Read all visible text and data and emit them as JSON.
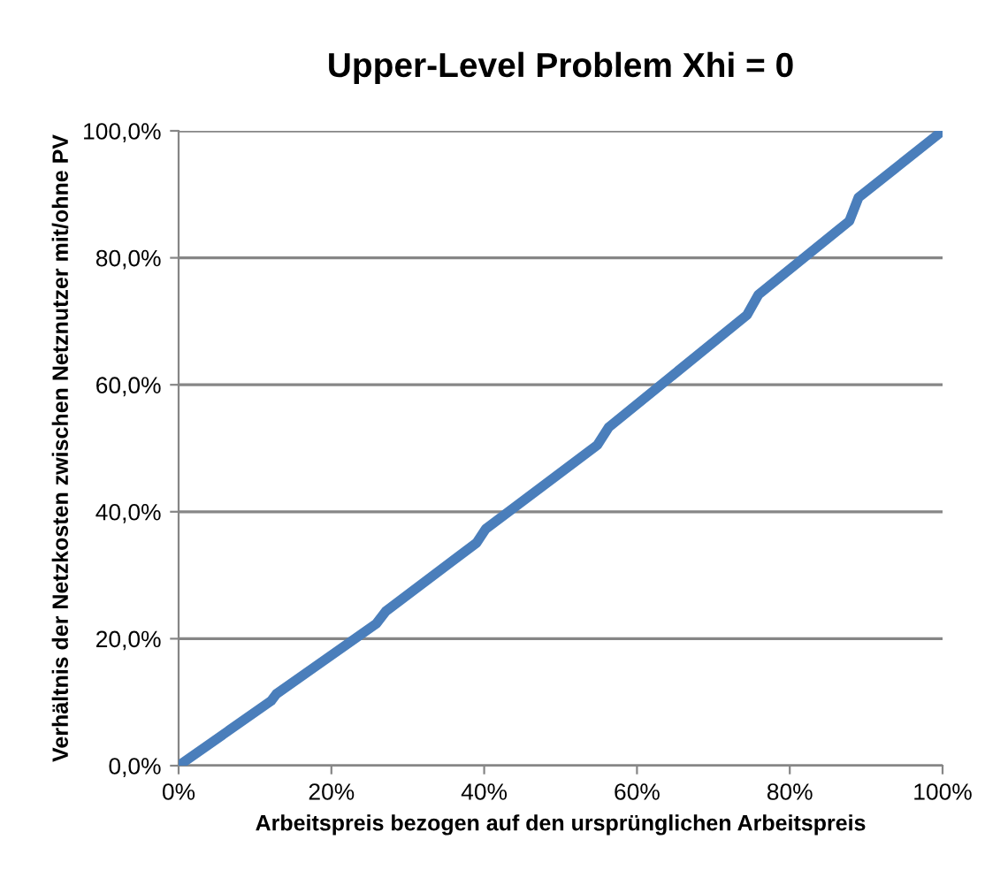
{
  "chart_data": {
    "type": "line",
    "title": "Upper-Level Problem Xhi = 0",
    "xlabel": "Arbeitspreis bezogen auf den ursprünglichen Arbeitspreis",
    "ylabel": "Verhältnis der Netzkosten zwischen Netznutzer mit/ohne PV",
    "series": [
      {
        "color": "#4a7ebb",
        "x": [
          0,
          12.1,
          12.8,
          25.9,
          27.1,
          39.0,
          40.2,
          54.8,
          56.3,
          74.4,
          75.9,
          87.8,
          89.0,
          100
        ],
        "values": [
          0,
          10.2,
          11.3,
          22.4,
          24.3,
          35.1,
          37.3,
          50.5,
          53.3,
          71.0,
          74.2,
          85.8,
          89.5,
          100
        ]
      }
    ],
    "xlim": [
      0,
      100
    ],
    "ylim": [
      0,
      100
    ],
    "xticks": [
      {
        "value": 0,
        "label": "0%"
      },
      {
        "value": 20,
        "label": "20%"
      },
      {
        "value": 40,
        "label": "40%"
      },
      {
        "value": 60,
        "label": "60%"
      },
      {
        "value": 80,
        "label": "80%"
      },
      {
        "value": 100,
        "label": "100%"
      }
    ],
    "yticks": [
      {
        "value": 0,
        "label": "0,0%"
      },
      {
        "value": 20,
        "label": "20,0%"
      },
      {
        "value": 40,
        "label": "40,0%"
      },
      {
        "value": 60,
        "label": "60,0%"
      },
      {
        "value": 80,
        "label": "80,0%"
      },
      {
        "value": 100,
        "label": "100,0%"
      }
    ],
    "grid": "y",
    "marker": "none",
    "line_style": "solid"
  }
}
